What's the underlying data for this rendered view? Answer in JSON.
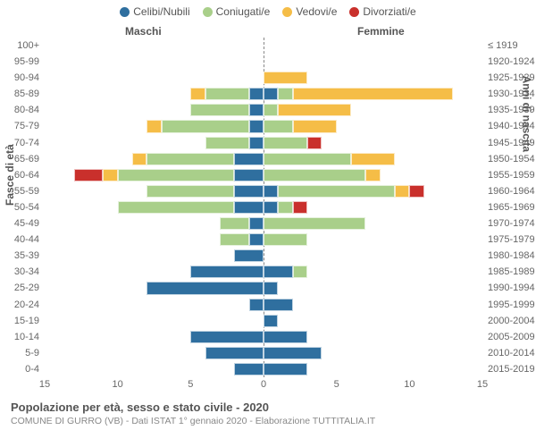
{
  "legend": {
    "items": [
      {
        "label": "Celibi/Nubili",
        "color": "#2f6f9f"
      },
      {
        "label": "Coniugati/e",
        "color": "#a9cf8a"
      },
      {
        "label": "Vedovi/e",
        "color": "#f5bd47"
      },
      {
        "label": "Divorziati/e",
        "color": "#c9302c"
      }
    ]
  },
  "gender": {
    "left": "Maschi",
    "right": "Femmine"
  },
  "axis": {
    "left_title": "Fasce di età",
    "right_title": "Anni di nascita",
    "xmax": 15,
    "xticks": [
      15,
      10,
      5,
      0,
      5,
      10,
      15
    ]
  },
  "footer": {
    "title": "Popolazione per età, sesso e stato civile - 2020",
    "sub": "COMUNE DI GURRO (VB) - Dati ISTAT 1° gennaio 2020 - Elaborazione TUTTITALIA.IT"
  },
  "colors": {
    "celibi": "#2f6f9f",
    "coniugati": "#a9cf8a",
    "vedovi": "#f5bd47",
    "divorziati": "#c9302c"
  },
  "rows": [
    {
      "age": "100+",
      "birth": "≤ 1919",
      "m": {
        "c": 0,
        "k": 0,
        "v": 0,
        "d": 0
      },
      "f": {
        "c": 0,
        "k": 0,
        "v": 0,
        "d": 0
      }
    },
    {
      "age": "95-99",
      "birth": "1920-1924",
      "m": {
        "c": 0,
        "k": 0,
        "v": 0,
        "d": 0
      },
      "f": {
        "c": 0,
        "k": 0,
        "v": 0,
        "d": 0
      }
    },
    {
      "age": "90-94",
      "birth": "1925-1929",
      "m": {
        "c": 0,
        "k": 0,
        "v": 0,
        "d": 0
      },
      "f": {
        "c": 0,
        "k": 0,
        "v": 3,
        "d": 0
      }
    },
    {
      "age": "85-89",
      "birth": "1930-1934",
      "m": {
        "c": 1,
        "k": 3,
        "v": 1,
        "d": 0
      },
      "f": {
        "c": 1,
        "k": 1,
        "v": 11,
        "d": 0
      }
    },
    {
      "age": "80-84",
      "birth": "1935-1939",
      "m": {
        "c": 1,
        "k": 4,
        "v": 0,
        "d": 0
      },
      "f": {
        "c": 0,
        "k": 1,
        "v": 5,
        "d": 0
      }
    },
    {
      "age": "75-79",
      "birth": "1940-1944",
      "m": {
        "c": 1,
        "k": 6,
        "v": 1,
        "d": 0
      },
      "f": {
        "c": 0,
        "k": 2,
        "v": 3,
        "d": 0
      }
    },
    {
      "age": "70-74",
      "birth": "1945-1949",
      "m": {
        "c": 1,
        "k": 3,
        "v": 0,
        "d": 0
      },
      "f": {
        "c": 0,
        "k": 3,
        "v": 0,
        "d": 1
      }
    },
    {
      "age": "65-69",
      "birth": "1950-1954",
      "m": {
        "c": 2,
        "k": 6,
        "v": 1,
        "d": 0
      },
      "f": {
        "c": 0,
        "k": 6,
        "v": 3,
        "d": 0
      }
    },
    {
      "age": "60-64",
      "birth": "1955-1959",
      "m": {
        "c": 2,
        "k": 8,
        "v": 1,
        "d": 2
      },
      "f": {
        "c": 0,
        "k": 7,
        "v": 1,
        "d": 0
      }
    },
    {
      "age": "55-59",
      "birth": "1960-1964",
      "m": {
        "c": 2,
        "k": 6,
        "v": 0,
        "d": 0
      },
      "f": {
        "c": 1,
        "k": 8,
        "v": 1,
        "d": 1
      }
    },
    {
      "age": "50-54",
      "birth": "1965-1969",
      "m": {
        "c": 2,
        "k": 8,
        "v": 0,
        "d": 0
      },
      "f": {
        "c": 1,
        "k": 1,
        "v": 0,
        "d": 1
      }
    },
    {
      "age": "45-49",
      "birth": "1970-1974",
      "m": {
        "c": 1,
        "k": 2,
        "v": 0,
        "d": 0
      },
      "f": {
        "c": 0,
        "k": 7,
        "v": 0,
        "d": 0
      }
    },
    {
      "age": "40-44",
      "birth": "1975-1979",
      "m": {
        "c": 1,
        "k": 2,
        "v": 0,
        "d": 0
      },
      "f": {
        "c": 0,
        "k": 3,
        "v": 0,
        "d": 0
      }
    },
    {
      "age": "35-39",
      "birth": "1980-1984",
      "m": {
        "c": 2,
        "k": 0,
        "v": 0,
        "d": 0
      },
      "f": {
        "c": 0,
        "k": 0,
        "v": 0,
        "d": 0
      }
    },
    {
      "age": "30-34",
      "birth": "1985-1989",
      "m": {
        "c": 5,
        "k": 0,
        "v": 0,
        "d": 0
      },
      "f": {
        "c": 2,
        "k": 1,
        "v": 0,
        "d": 0
      }
    },
    {
      "age": "25-29",
      "birth": "1990-1994",
      "m": {
        "c": 8,
        "k": 0,
        "v": 0,
        "d": 0
      },
      "f": {
        "c": 1,
        "k": 0,
        "v": 0,
        "d": 0
      }
    },
    {
      "age": "20-24",
      "birth": "1995-1999",
      "m": {
        "c": 1,
        "k": 0,
        "v": 0,
        "d": 0
      },
      "f": {
        "c": 2,
        "k": 0,
        "v": 0,
        "d": 0
      }
    },
    {
      "age": "15-19",
      "birth": "2000-2004",
      "m": {
        "c": 0,
        "k": 0,
        "v": 0,
        "d": 0
      },
      "f": {
        "c": 1,
        "k": 0,
        "v": 0,
        "d": 0
      }
    },
    {
      "age": "10-14",
      "birth": "2005-2009",
      "m": {
        "c": 5,
        "k": 0,
        "v": 0,
        "d": 0
      },
      "f": {
        "c": 3,
        "k": 0,
        "v": 0,
        "d": 0
      }
    },
    {
      "age": "5-9",
      "birth": "2010-2014",
      "m": {
        "c": 4,
        "k": 0,
        "v": 0,
        "d": 0
      },
      "f": {
        "c": 4,
        "k": 0,
        "v": 0,
        "d": 0
      }
    },
    {
      "age": "0-4",
      "birth": "2015-2019",
      "m": {
        "c": 2,
        "k": 0,
        "v": 0,
        "d": 0
      },
      "f": {
        "c": 3,
        "k": 0,
        "v": 0,
        "d": 0
      }
    }
  ]
}
